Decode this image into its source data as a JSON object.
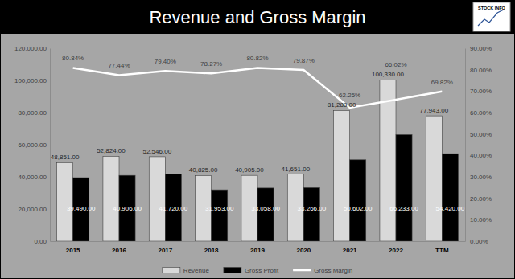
{
  "chart_data": {
    "type": "bar",
    "title": "Revenue and Gross Margin",
    "annotations": [
      "STOCK INFO"
    ],
    "categories": [
      "2015",
      "2016",
      "2017",
      "2018",
      "2019",
      "2020",
      "2021",
      "2022",
      "TTM"
    ],
    "series": [
      {
        "name": "Revenue",
        "type": "bar",
        "color": "#d9d9d9",
        "values": [
          48851,
          52824,
          52546,
          40825,
          40905,
          41651,
          81288,
          100330,
          77943
        ],
        "value_labels": [
          "48,851.00",
          "52,824.00",
          "52,546.00",
          "40,825.00",
          "40,905.00",
          "41,651.00",
          "81,288.00",
          "100,330.00",
          "77,943.00"
        ]
      },
      {
        "name": "Gross Profit",
        "type": "bar",
        "color": "#000000",
        "values": [
          39490,
          40906,
          41720,
          31953,
          33058,
          33266,
          50602,
          66233,
          54420
        ],
        "value_labels": [
          "39,490.00",
          "40,906.00",
          "41,720.00",
          "31,953.00",
          "33,058.00",
          "33,266.00",
          "50,602.00",
          "66,233.00",
          "54,420.00"
        ]
      },
      {
        "name": "Gross Margin",
        "type": "line",
        "color": "#ffffff",
        "axis": "y2",
        "values": [
          80.84,
          77.44,
          79.4,
          78.27,
          80.82,
          79.87,
          62.25,
          66.02,
          69.82
        ],
        "value_labels": [
          "80.84%",
          "77.44%",
          "79.40%",
          "78.27%",
          "80.82%",
          "79.87%",
          "62.25%",
          "66.02%",
          "69.82%"
        ]
      }
    ],
    "ylim": [
      0,
      120000
    ],
    "yticks": [
      {
        "value": 0,
        "label": "0.00"
      },
      {
        "value": 20000,
        "label": "20,000.00"
      },
      {
        "value": 40000,
        "label": "40,000.00"
      },
      {
        "value": 60000,
        "label": "60,000.00"
      },
      {
        "value": 80000,
        "label": "80,000.00"
      },
      {
        "value": 100000,
        "label": "100,000.00"
      },
      {
        "value": 120000,
        "label": "120,000.00"
      }
    ],
    "y2lim": [
      0,
      90
    ],
    "y2ticks": [
      {
        "value": 0,
        "label": "0.00%"
      },
      {
        "value": 10,
        "label": "10.00%"
      },
      {
        "value": 20,
        "label": "20.00%"
      },
      {
        "value": 30,
        "label": "30.00%"
      },
      {
        "value": 40,
        "label": "40.00%"
      },
      {
        "value": 50,
        "label": "50.00%"
      },
      {
        "value": 60,
        "label": "60.00%"
      },
      {
        "value": 70,
        "label": "70.00%"
      },
      {
        "value": 80,
        "label": "80.00%"
      },
      {
        "value": 90,
        "label": "90.00%"
      }
    ],
    "grid": false,
    "legend": "bottom",
    "data_labels": true
  }
}
